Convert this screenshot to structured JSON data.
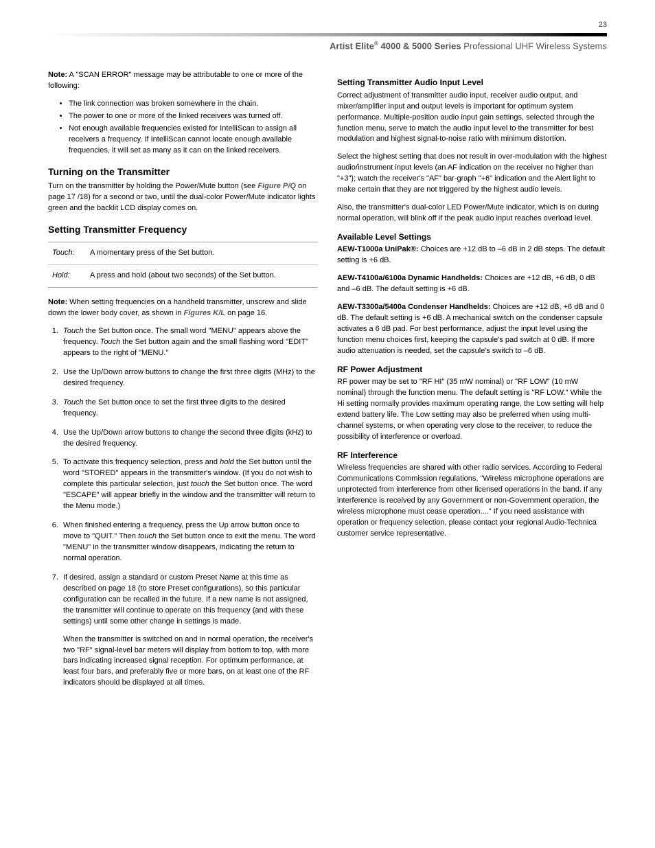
{
  "page_number": "23",
  "header": {
    "brand": "Artist Elite",
    "reg": "®",
    "series": " 4000 & 5000 Series ",
    "tagline": "Professional UHF Wireless Systems"
  },
  "left": {
    "note_label": "Note:",
    "note_intro": " A \"SCAN ERROR\" message may be attributable to one or more of the following:",
    "bullets": [
      "The link connection was broken somewhere in the chain.",
      "The power to one or more of the linked receivers was turned off.",
      "Not enough available frequencies existed for IntelliScan to assign all receivers a frequency. If IntelliScan cannot locate enough available frequencies, it will set as many as it can on the linked receivers."
    ],
    "turning_on_title": "Turning on the Transmitter",
    "turning_on_pre": "Turn on the transmitter by holding the Power/Mute button (see ",
    "turning_on_fig": "Figure P/Q",
    "turning_on_post": " on page 17 /18) for a second or two, until the dual-color Power/Mute indicator lights green and the backlit LCD display comes on.",
    "freq_title": "Setting Transmitter Frequency",
    "defs": [
      {
        "term": "Touch:",
        "desc": "A momentary press of the Set button."
      },
      {
        "term": "Hold:",
        "desc": "A press and hold (about two seconds) of the Set button."
      }
    ],
    "freq_note_label": "Note:",
    "freq_note_pre": " When setting frequencies on a handheld transmitter, unscrew and slide down the lower body cover, as shown in ",
    "freq_note_fig": "Figures K/L",
    "freq_note_post": " on page 16.",
    "steps": {
      "s1_a": "Touch",
      "s1_b": " the Set button once. The small word \"MENU\" appears above the frequency. ",
      "s1_c": "Touch",
      "s1_d": " the Set button again and the small flashing word \"EDIT\" appears to the right of \"MENU.\"",
      "s2": "Use the Up/Down arrow buttons to change the first three digits (MHz) to the desired frequency.",
      "s3_a": "Touch",
      "s3_b": " the Set button once to set the first three digits to the desired frequency.",
      "s4": "Use the Up/Down arrow buttons to change the second three digits (kHz) to the desired frequency.",
      "s5_a": "To activate this frequency selection, press and ",
      "s5_b": "hold",
      "s5_c": " the Set button until the word \"STORED\" appears in the transmitter's window. (If you do not wish to complete this particular selection, just ",
      "s5_d": "touch",
      "s5_e": " the Set button once. The word \"ESCAPE\" will appear briefly in the window and the transmitter will return to the Menu mode.)",
      "s6_a": "When finished entering a frequency, press the Up arrow button once to move to \"QUIT.\" Then ",
      "s6_b": "touch",
      "s6_c": " the Set button once to exit the menu. The word \"MENU\" in the transmitter window disappears, indicating the return to normal operation.",
      "s7": "If desired, assign a standard or custom Preset Name at this time as described on page 18 (to store Preset configurations), so this particular configuration can be recalled in the future. If a new name is not assigned, the transmitter will continue to operate on this frequency (and with these settings) until some other change in settings is made.",
      "s7_tail": "When the transmitter is switched on and in normal operation, the receiver's two \"RF\" signal-level bar meters will display from bottom to top, with more bars indicating increased signal reception. For optimum performance, at least four bars, and preferably five or more bars, on at least one of the RF indicators should be displayed at all times."
    }
  },
  "right": {
    "audio_title": "Setting Transmitter Audio Input Level",
    "audio_p1": "Correct adjustment of transmitter audio input, receiver audio output, and mixer/amplifier input and output levels is important for optimum system performance. Multiple-position audio input gain settings, selected through the function menu, serve to match the audio input level to the transmitter for best modulation and highest signal-to-noise ratio with minimum distortion.",
    "audio_p2": "Select the highest setting that does not result in over-modulation with the highest audio/instrument input levels (an AF indication on the receiver no higher than \"+3\"); watch the receiver's \"AF\" bar-graph \"+6\" indication and the Alert light to make certain that they are not triggered by the highest audio levels.",
    "audio_p3": "Also, the transmitter's dual-color LED Power/Mute indicator, which is on during normal operation, will blink off if the peak audio input reaches overload level.",
    "levels_title": "Available Level Settings",
    "lv1_label": "AEW-T1000a UniPak",
    "lv1_reg": "®",
    "lv1_colon": ":",
    "lv1_text": " Choices are +12 dB to –6 dB in 2 dB steps. The default setting is +6 dB.",
    "lv2_label": "AEW-T4100a/6100a Dynamic Handhelds:",
    "lv2_text": " Choices are +12 dB, +6 dB, 0 dB and –6 dB. The default setting is +6 dB.",
    "lv3_label": "AEW-T3300a/5400a Condenser Handhelds:",
    "lv3_text": " Choices are +12 dB, +6 dB and 0 dB. The default setting is +6 dB. A mechanical switch on the condenser capsule activates a 6 dB pad. For best performance, adjust the input level using the function menu choices first, keeping the capsule's pad switch at 0 dB. If more audio attenuation is needed, set the capsule's switch to –6 dB.",
    "rf_title": "RF Power Adjustment",
    "rf_text": "RF power may be set to \"RF HI\" (35 mW nominal) or \"RF LOW\" (10 mW nominal) through the function menu. The default setting is \"RF LOW.\" While the Hi setting normally provides maximum operating range, the Low setting will help extend battery life. The Low setting may also be preferred when using multi-channel systems, or when operating very close to the receiver, to reduce the possibility of interference or overload.",
    "rfi_title": "RF Interference",
    "rfi_text": "Wireless frequencies are shared with other radio services. According to Federal Communications Commission regulations, \"Wireless microphone operations are unprotected from interference from other licensed operations in the band. If any interference is received by any Government or non-Government operation, the wireless microphone must cease operation....\" If you need assistance with operation or frequency selection, please contact your regional Audio-Technica customer service representative."
  }
}
